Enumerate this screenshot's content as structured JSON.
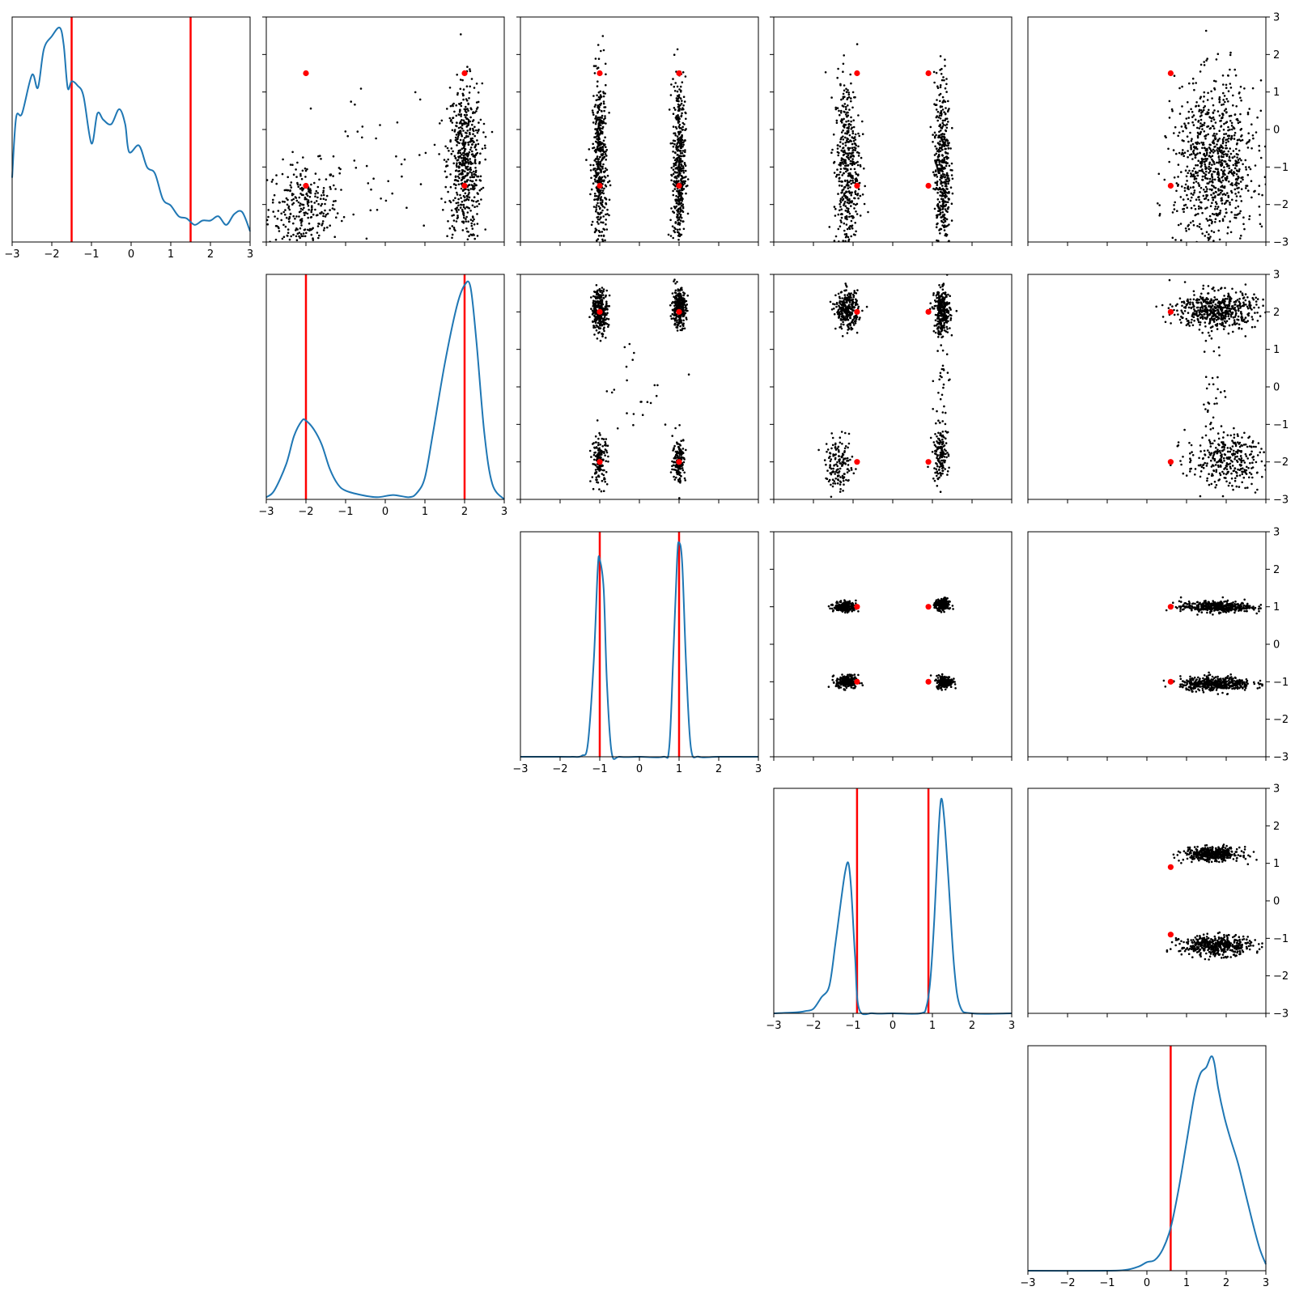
{
  "chart_data": {
    "type": "scatter",
    "layout": "corner-plot-upper-triangle",
    "n_params": 5,
    "title": "",
    "xlabel": "",
    "ylabel": "",
    "axis_range": [
      -3,
      3
    ],
    "tick_labels": [
      "−3",
      "−2",
      "−1",
      "0",
      "1",
      "2",
      "3"
    ],
    "tick_values": [
      -3,
      -2,
      -1,
      0,
      1,
      2,
      3
    ],
    "grid": false,
    "legend": "none",
    "colors": {
      "density": "#1f77b4",
      "truth": "#ff0000",
      "samples": "#000000"
    },
    "diagonal": [
      {
        "param": 1,
        "type": "line",
        "truths": [
          -1.5,
          1.5
        ],
        "x": [
          -3.0,
          -2.9,
          -2.75,
          -2.5,
          -2.35,
          -2.2,
          -2.0,
          -1.8,
          -1.7,
          -1.6,
          -1.5,
          -1.35,
          -1.2,
          -1.0,
          -0.85,
          -0.7,
          -0.5,
          -0.3,
          -0.15,
          -0.05,
          0.2,
          0.4,
          0.6,
          0.8,
          1.0,
          1.2,
          1.4,
          1.6,
          1.8,
          2.0,
          2.2,
          2.4,
          2.6,
          2.8,
          3.0
        ],
        "y": [
          0.3,
          0.58,
          0.6,
          0.78,
          0.72,
          0.9,
          0.96,
          1.0,
          0.92,
          0.72,
          0.75,
          0.73,
          0.68,
          0.46,
          0.6,
          0.57,
          0.55,
          0.62,
          0.55,
          0.42,
          0.45,
          0.35,
          0.32,
          0.2,
          0.17,
          0.12,
          0.11,
          0.08,
          0.1,
          0.1,
          0.12,
          0.08,
          0.13,
          0.14,
          0.05
        ]
      },
      {
        "param": 2,
        "type": "line",
        "truths": [
          -2.0,
          2.0
        ],
        "x": [
          -3.0,
          -2.8,
          -2.5,
          -2.3,
          -2.1,
          -2.0,
          -1.8,
          -1.6,
          -1.4,
          -1.2,
          -1.0,
          -0.6,
          -0.2,
          0.2,
          0.6,
          0.8,
          1.0,
          1.2,
          1.5,
          1.8,
          2.0,
          2.15,
          2.3,
          2.5,
          2.7,
          3.0
        ],
        "y": [
          0.01,
          0.04,
          0.16,
          0.29,
          0.36,
          0.36,
          0.32,
          0.25,
          0.14,
          0.07,
          0.04,
          0.02,
          0.01,
          0.02,
          0.01,
          0.03,
          0.1,
          0.3,
          0.62,
          0.88,
          0.98,
          0.97,
          0.72,
          0.3,
          0.07,
          0.0
        ]
      },
      {
        "param": 3,
        "type": "line",
        "truths": [
          -1.0,
          1.0
        ],
        "x": [
          -3.0,
          -2.0,
          -1.7,
          -1.45,
          -1.3,
          -1.15,
          -1.05,
          -1.0,
          -0.9,
          -0.82,
          -0.7,
          -0.5,
          0.0,
          0.6,
          0.75,
          0.85,
          0.95,
          1.0,
          1.08,
          1.18,
          1.3,
          1.5,
          2.0,
          3.0
        ],
        "y": [
          0.0,
          0.0,
          0.0,
          0.005,
          0.06,
          0.45,
          0.88,
          0.92,
          0.78,
          0.35,
          0.02,
          0.0,
          0.0,
          0.0,
          0.04,
          0.45,
          0.92,
          1.0,
          0.9,
          0.42,
          0.04,
          0.0,
          0.0,
          0.0
        ]
      },
      {
        "param": 4,
        "type": "line",
        "truths": [
          -0.9,
          0.9
        ],
        "x": [
          -3.0,
          -2.4,
          -2.2,
          -2.0,
          -1.8,
          -1.6,
          -1.45,
          -1.3,
          -1.2,
          -1.12,
          -1.05,
          -0.95,
          -0.85,
          -0.5,
          0.0,
          0.7,
          0.85,
          0.95,
          1.05,
          1.15,
          1.22,
          1.3,
          1.4,
          1.55,
          1.7,
          2.0,
          3.0
        ],
        "y": [
          0.0,
          0.005,
          0.01,
          0.02,
          0.07,
          0.12,
          0.3,
          0.5,
          0.62,
          0.66,
          0.55,
          0.25,
          0.02,
          0.0,
          0.0,
          0.0,
          0.03,
          0.15,
          0.42,
          0.78,
          0.94,
          0.85,
          0.6,
          0.2,
          0.03,
          0.0,
          0.0
        ]
      },
      {
        "param": 5,
        "type": "line",
        "truths": [
          0.6
        ],
        "x": [
          -3.0,
          -1.0,
          -0.5,
          -0.2,
          0.0,
          0.2,
          0.4,
          0.6,
          0.8,
          1.0,
          1.2,
          1.35,
          1.5,
          1.62,
          1.7,
          1.8,
          1.95,
          2.1,
          2.3,
          2.5,
          2.7,
          2.85,
          3.0
        ],
        "y": [
          0.0,
          0.0,
          0.005,
          0.02,
          0.04,
          0.05,
          0.1,
          0.2,
          0.38,
          0.6,
          0.82,
          0.92,
          0.95,
          1.0,
          0.97,
          0.85,
          0.72,
          0.62,
          0.5,
          0.35,
          0.2,
          0.1,
          0.03
        ]
      }
    ],
    "offdiagonal": [
      {
        "x_param": 2,
        "y_param": 1,
        "truth_points": [
          [
            -2.0,
            1.5
          ],
          [
            2.0,
            1.5
          ],
          [
            -2.0,
            -1.5
          ],
          [
            2.0,
            -1.5
          ]
        ],
        "clusters": [
          {
            "x_mean": -2.05,
            "x_std": 0.45,
            "y_mean": -2.1,
            "y_std": 0.6,
            "x_min": -3,
            "x_max": 3,
            "y_min": -3,
            "y_max": 3,
            "weight": 0.33
          },
          {
            "x_mean": 2.0,
            "x_std": 0.22,
            "y_mean": -0.9,
            "y_std": 1.05,
            "x_min": 1.0,
            "x_max": 3,
            "y_min": -3,
            "y_max": 3,
            "weight": 0.62
          },
          {
            "x_mean": 0.0,
            "x_std": 0.9,
            "y_mean": -1.2,
            "y_std": 1.2,
            "x_min": -3,
            "x_max": 3,
            "y_min": -3,
            "y_max": 3,
            "weight": 0.05
          }
        ]
      },
      {
        "x_param": 3,
        "y_param": 1,
        "truth_points": [
          [
            -1.0,
            1.5
          ],
          [
            1.0,
            1.5
          ],
          [
            -1.0,
            -1.5
          ],
          [
            1.0,
            -1.5
          ]
        ],
        "clusters": [
          {
            "x_mean": -1.0,
            "x_std": 0.09,
            "y_mean": -1.0,
            "y_std": 1.2,
            "x_min": -3,
            "x_max": 3,
            "y_min": -3,
            "y_max": 3,
            "weight": 0.5
          },
          {
            "x_mean": 1.0,
            "x_std": 0.08,
            "y_mean": -1.0,
            "y_std": 1.2,
            "x_min": -3,
            "x_max": 3,
            "y_min": -3,
            "y_max": 3,
            "weight": 0.5
          }
        ]
      },
      {
        "x_param": 4,
        "y_param": 1,
        "truth_points": [
          [
            -0.9,
            1.5
          ],
          [
            0.9,
            1.5
          ],
          [
            -0.9,
            -1.5
          ],
          [
            0.9,
            -1.5
          ]
        ],
        "clusters": [
          {
            "x_mean": -1.15,
            "x_std": 0.16,
            "y_mean": -1.0,
            "y_std": 1.2,
            "x_min": -3,
            "x_max": 3,
            "y_min": -3,
            "y_max": 3,
            "weight": 0.5
          },
          {
            "x_mean": 1.25,
            "x_std": 0.1,
            "y_mean": -1.0,
            "y_std": 1.2,
            "x_min": -3,
            "x_max": 3,
            "y_min": -3,
            "y_max": 3,
            "weight": 0.5
          }
        ]
      },
      {
        "x_param": 5,
        "y_param": 1,
        "truth_points": [
          [
            0.6,
            1.5
          ],
          [
            0.6,
            -1.5
          ]
        ],
        "clusters": [
          {
            "x_mean": 1.7,
            "x_std": 0.5,
            "y_mean": -1.0,
            "y_std": 1.1,
            "x_min": -3,
            "x_max": 3,
            "y_min": -3,
            "y_max": 3,
            "weight": 1.0
          }
        ]
      },
      {
        "x_param": 3,
        "y_param": 2,
        "truth_points": [
          [
            -1.0,
            2.0
          ],
          [
            1.0,
            2.0
          ],
          [
            -1.0,
            -2.0
          ],
          [
            1.0,
            -2.0
          ]
        ],
        "clusters": [
          {
            "x_mean": -1.0,
            "x_std": 0.1,
            "y_mean": 2.05,
            "y_std": 0.28,
            "x_min": -3,
            "x_max": 3,
            "y_min": -3,
            "y_max": 3,
            "weight": 0.32
          },
          {
            "x_mean": 1.0,
            "x_std": 0.09,
            "y_mean": 2.1,
            "y_std": 0.25,
            "x_min": -3,
            "x_max": 3,
            "y_min": -3,
            "y_max": 3,
            "weight": 0.32
          },
          {
            "x_mean": -1.0,
            "x_std": 0.1,
            "y_mean": -1.95,
            "y_std": 0.32,
            "x_min": -3,
            "x_max": 3,
            "y_min": -3,
            "y_max": 3,
            "weight": 0.16
          },
          {
            "x_mean": 1.0,
            "x_std": 0.08,
            "y_mean": -1.95,
            "y_std": 0.3,
            "x_min": -3,
            "x_max": 3,
            "y_min": -3,
            "y_max": 3,
            "weight": 0.16
          },
          {
            "x_mean": 0.0,
            "x_std": 1.0,
            "y_mean": 0.0,
            "y_std": 0.8,
            "x_min": -1.3,
            "x_max": 1.3,
            "y_min": -1.5,
            "y_max": 1.5,
            "weight": 0.04
          }
        ]
      },
      {
        "x_param": 4,
        "y_param": 2,
        "truth_points": [
          [
            -0.9,
            2.0
          ],
          [
            0.9,
            2.0
          ],
          [
            -0.9,
            -2.0
          ],
          [
            0.9,
            -2.0
          ]
        ],
        "clusters": [
          {
            "x_mean": -1.15,
            "x_std": 0.14,
            "y_mean": 2.05,
            "y_std": 0.25,
            "x_min": -3,
            "x_max": 3,
            "y_min": -3,
            "y_max": 3,
            "weight": 0.32
          },
          {
            "x_mean": 1.25,
            "x_std": 0.1,
            "y_mean": 2.0,
            "y_std": 0.3,
            "x_min": -3,
            "x_max": 3,
            "y_min": -3,
            "y_max": 3,
            "weight": 0.32
          },
          {
            "x_mean": -1.35,
            "x_std": 0.17,
            "y_mean": -2.1,
            "y_std": 0.35,
            "x_min": -3,
            "x_max": 3,
            "y_min": -3,
            "y_max": 3,
            "weight": 0.16
          },
          {
            "x_mean": 1.2,
            "x_std": 0.1,
            "y_mean": -1.8,
            "y_std": 0.35,
            "x_min": -3,
            "x_max": 3,
            "y_min": -3,
            "y_max": 3,
            "weight": 0.16
          },
          {
            "x_mean": 1.25,
            "x_std": 0.1,
            "y_mean": 0.0,
            "y_std": 0.9,
            "x_min": -3,
            "x_max": 3,
            "y_min": -1.6,
            "y_max": 1.6,
            "weight": 0.04
          }
        ]
      },
      {
        "x_param": 5,
        "y_param": 2,
        "truth_points": [
          [
            0.6,
            2.0
          ],
          [
            0.6,
            -2.0
          ]
        ],
        "clusters": [
          {
            "x_mean": 1.75,
            "x_std": 0.5,
            "y_mean": 2.05,
            "y_std": 0.25,
            "x_min": -3,
            "x_max": 3,
            "y_min": -3,
            "y_max": 3,
            "weight": 0.6
          },
          {
            "x_mean": 2.0,
            "x_std": 0.5,
            "y_mean": -1.95,
            "y_std": 0.35,
            "x_min": -3,
            "x_max": 3,
            "y_min": -3,
            "y_max": 3,
            "weight": 0.36
          },
          {
            "x_mean": 1.7,
            "x_std": 0.15,
            "y_mean": 0.0,
            "y_std": 0.9,
            "x_min": -3,
            "x_max": 3,
            "y_min": -1.6,
            "y_max": 1.6,
            "weight": 0.04
          }
        ]
      },
      {
        "x_param": 4,
        "y_param": 3,
        "truth_points": [
          [
            -0.9,
            1.0
          ],
          [
            0.9,
            1.0
          ],
          [
            -0.9,
            -1.0
          ],
          [
            0.9,
            -1.0
          ]
        ],
        "clusters": [
          {
            "x_mean": -1.2,
            "x_std": 0.14,
            "y_mean": 1.0,
            "y_std": 0.07,
            "x_min": -3,
            "x_max": 3,
            "y_min": -3,
            "y_max": 3,
            "weight": 0.25
          },
          {
            "x_mean": 1.25,
            "x_std": 0.09,
            "y_mean": 1.05,
            "y_std": 0.08,
            "x_min": -3,
            "x_max": 3,
            "y_min": -3,
            "y_max": 3,
            "weight": 0.25
          },
          {
            "x_mean": -1.15,
            "x_std": 0.14,
            "y_mean": -1.0,
            "y_std": 0.09,
            "x_min": -3,
            "x_max": 3,
            "y_min": -3,
            "y_max": 3,
            "weight": 0.25
          },
          {
            "x_mean": 1.3,
            "x_std": 0.1,
            "y_mean": -1.0,
            "y_std": 0.08,
            "x_min": -3,
            "x_max": 3,
            "y_min": -3,
            "y_max": 3,
            "weight": 0.25
          }
        ]
      },
      {
        "x_param": 5,
        "y_param": 3,
        "truth_points": [
          [
            0.6,
            1.0
          ],
          [
            0.6,
            -1.0
          ]
        ],
        "clusters": [
          {
            "x_mean": 1.75,
            "x_std": 0.45,
            "y_mean": 1.0,
            "y_std": 0.07,
            "x_min": -3,
            "x_max": 3,
            "y_min": -3,
            "y_max": 3,
            "weight": 0.5
          },
          {
            "x_mean": 1.75,
            "x_std": 0.45,
            "y_mean": -1.05,
            "y_std": 0.09,
            "x_min": -3,
            "x_max": 3,
            "y_min": -3,
            "y_max": 3,
            "weight": 0.5
          }
        ]
      },
      {
        "x_param": 5,
        "y_param": 4,
        "truth_points": [
          [
            0.6,
            0.9
          ],
          [
            0.6,
            -0.9
          ]
        ],
        "clusters": [
          {
            "x_mean": 1.65,
            "x_std": 0.35,
            "y_mean": 1.25,
            "y_std": 0.09,
            "x_min": -3,
            "x_max": 3,
            "y_min": -3,
            "y_max": 3,
            "weight": 0.5
          },
          {
            "x_mean": 1.75,
            "x_std": 0.45,
            "y_mean": -1.2,
            "y_std": 0.13,
            "x_min": -3,
            "x_max": 3,
            "y_min": -3,
            "y_max": 3,
            "weight": 0.5
          }
        ]
      }
    ]
  }
}
